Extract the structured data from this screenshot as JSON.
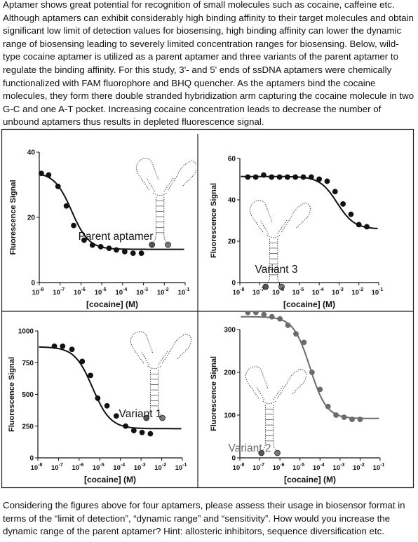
{
  "intro_text": "Aptamer shows great potential for recognition of small molecules such as cocaine, caffeine etc. Although aptamers can exhibit considerably high binding affinity to their target molecules and obtain significant low limit of detection values for biosensing, high binding affinity can lower the dynamic range of biosensing leading to severely limited concentration ranges for biosensing. Below, wild-type cocaine aptamer is utilized as a parent aptamer and three variants of the parent aptamer to regulate the binding affinity. For this study, 3'- and 5' ends of ssDNA aptamers were chemically functionalized with FAM fluorophore and BHQ quencher. As the aptamers bind the cocaine molecules, they form there double stranded hybridization arm capturing the cocaine molecule in two G-C and one A-T pocket. Increasing cocaine concentration leads to decrease the number of unbound aptamers thus results in depleted fluorescence signal.",
  "question_text": "Considering the figures above for four aptamers, please assess their usage in biosensor format in terms of the “limit of detection”, “dynamic range” and “sensitivity”. How would you increase the dynamic range of the parent aptamer? Hint: allosteric inhibitors, sequence diversification etc.",
  "chart_data": [
    {
      "type": "scatter",
      "title": "Parent aptamer",
      "xlabel": "[cocaine] (M)",
      "ylabel": "Fluorescence Signal",
      "x_tick_labels": [
        "10-8",
        "10-7",
        "10-6",
        "10-5",
        "10-4",
        "10-3",
        "10-2",
        "10-1"
      ],
      "y_ticks": [
        0,
        20,
        40
      ],
      "ylim": [
        0,
        40
      ],
      "xlim_log10": [
        -8,
        -1
      ],
      "x_log10": [
        -7.9,
        -7.55,
        -7.1,
        -6.7,
        -6.35,
        -5.85,
        -5.45,
        -5.05,
        -4.65,
        -4.3,
        -3.9,
        -3.5,
        -3.1
      ],
      "y": [
        33.5,
        33,
        29.5,
        23.5,
        17.5,
        13,
        11.5,
        11,
        10.5,
        10,
        9.5,
        9,
        9
      ],
      "fit": {
        "top": 33.8,
        "bottom": 10.2,
        "log_ec50": -6.45,
        "hill": 1.05
      },
      "color": "#111111"
    },
    {
      "type": "scatter",
      "title": "Variant 3",
      "xlabel": "[cocaine] (M)",
      "ylabel": "Fluorescence Signal",
      "x_tick_labels": [
        "10-8",
        "10-7",
        "10-6",
        "10-5",
        "10-4",
        "10-3",
        "10-2",
        "10-1"
      ],
      "y_ticks": [
        0,
        20,
        40,
        60
      ],
      "ylim": [
        0,
        60
      ],
      "xlim_log10": [
        -8,
        -1
      ],
      "x_log10": [
        -7.6,
        -7.2,
        -6.8,
        -6.4,
        -6.0,
        -5.6,
        -5.2,
        -4.8,
        -4.4,
        -4.0,
        -3.6,
        -3.2,
        -2.8,
        -2.4,
        -2.0,
        -1.6
      ],
      "y": [
        51,
        51,
        52,
        51,
        51,
        51,
        51,
        51,
        51,
        50,
        49,
        44,
        38,
        33,
        28,
        27
      ],
      "fit": {
        "top": 51.3,
        "bottom": 25.9,
        "log_ec50": -3.1,
        "hill": 1.0
      },
      "color": "#111111"
    },
    {
      "type": "scatter",
      "title": "Variant 1",
      "xlabel": "[cocaine] (M)",
      "ylabel": "Fluorescence Signal",
      "x_tick_labels": [
        "10-8",
        "10-7",
        "10-6",
        "10-5",
        "10-4",
        "10-3",
        "10-2",
        "10-1"
      ],
      "y_ticks": [
        0,
        250,
        500,
        750,
        1000
      ],
      "ylim": [
        0,
        1000
      ],
      "xlim_log10": [
        -8,
        -1
      ],
      "x_log10": [
        -7.2,
        -6.8,
        -6.35,
        -5.85,
        -5.45,
        -5.1,
        -4.65,
        -4.2,
        -3.75,
        -3.35,
        -2.95,
        -2.55
      ],
      "y": [
        880,
        880,
        855,
        760,
        650,
        470,
        410,
        330,
        250,
        215,
        200,
        190
      ],
      "fit": {
        "top": 875,
        "bottom": 230,
        "log_ec50": -5.35,
        "hill": 1.0
      },
      "color": "#111111"
    },
    {
      "type": "scatter",
      "title": "Variant 2",
      "xlabel": "[cocaine] (M)",
      "ylabel": "Fluorescence Signal",
      "x_tick_labels": [
        "10-8",
        "10-7",
        "10-6",
        "10-5",
        "10-4",
        "10-3",
        "10-2",
        "10-1"
      ],
      "y_ticks": [
        0,
        100,
        200,
        300
      ],
      "ylim": [
        0,
        300
      ],
      "xlim_log10": [
        -8,
        -1
      ],
      "x_log10": [
        -7.6,
        -7.2,
        -6.8,
        -6.4,
        -6.0,
        -5.6,
        -5.2,
        -4.8,
        -4.4,
        -4.0,
        -3.6,
        -3.2,
        -2.8,
        -2.4,
        -2.0
      ],
      "y": [
        340,
        340,
        335,
        330,
        325,
        310,
        290,
        270,
        200,
        160,
        120,
        100,
        95,
        90,
        90
      ],
      "fit": {
        "top": 330,
        "bottom": 92,
        "log_ec50": -4.5,
        "hill": 1.05
      },
      "color": "#6b6b6b"
    }
  ]
}
